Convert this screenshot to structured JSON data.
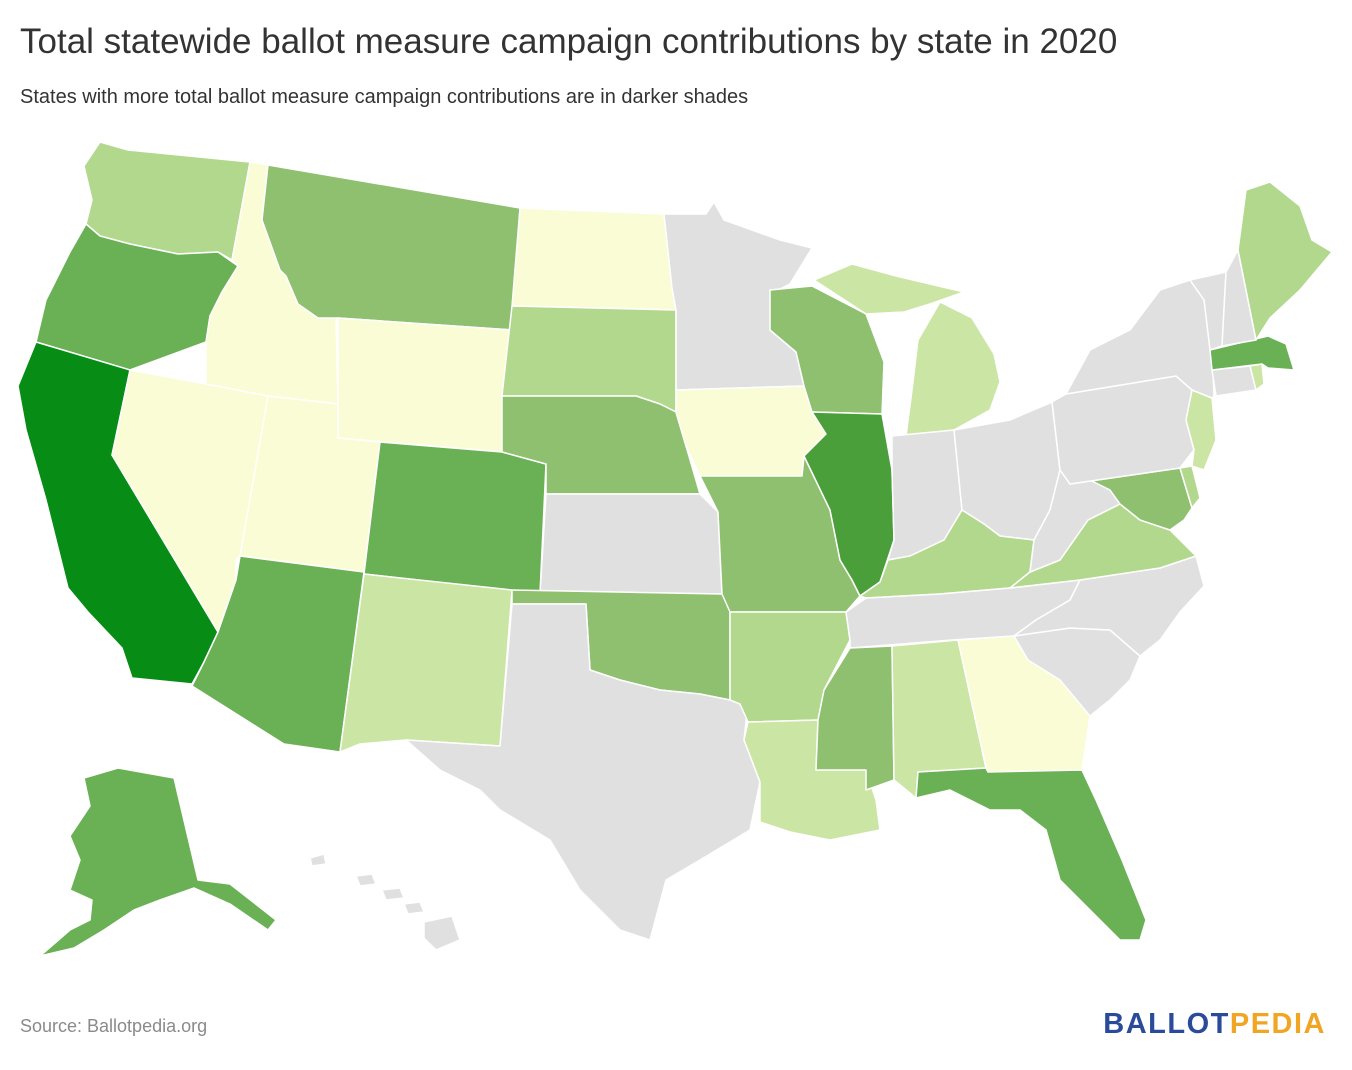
{
  "title": "Total statewide ballot measure campaign contributions by state in 2020",
  "subtitle": "States with more total ballot measure campaign contributions are in darker shades",
  "source": "Source: Ballotpedia.org",
  "logo": {
    "part1": "BALLOT",
    "part2": "PEDIA"
  },
  "colors": {
    "level0": "#e0e0e0",
    "level1": "#fafcd6",
    "level2": "#cbe5a4",
    "level3": "#b2d88d",
    "level4": "#8ec070",
    "level5": "#6ab055",
    "level6": "#4b9f3b",
    "level7": "#078c16"
  },
  "states": {
    "WA": "level3",
    "OR": "level5",
    "CA": "level7",
    "ID": "level1",
    "NV": "level1",
    "MT": "level4",
    "WY": "level1",
    "UT": "level1",
    "AZ": "level5",
    "CO": "level5",
    "NM": "level2",
    "ND": "level1",
    "SD": "level3",
    "NE": "level4",
    "KS": "level0",
    "OK": "level4",
    "TX": "level0",
    "MN": "level0",
    "IA": "level1",
    "MO": "level4",
    "AR": "level3",
    "LA": "level2",
    "WI": "level4",
    "IL": "level6",
    "MI": "level2",
    "IN": "level0",
    "OH": "level0",
    "KY": "level3",
    "TN": "level0",
    "MS": "level4",
    "AL": "level2",
    "GA": "level1",
    "FL": "level5",
    "SC": "level0",
    "NC": "level0",
    "VA": "level3",
    "WV": "level0",
    "MD": "level4",
    "DE": "level3",
    "NJ": "level2",
    "PA": "level0",
    "NY": "level0",
    "CT": "level0",
    "RI": "level2",
    "MA": "level5",
    "VT": "level0",
    "NH": "level0",
    "ME": "level3",
    "AK": "level5",
    "HI": "level0"
  }
}
